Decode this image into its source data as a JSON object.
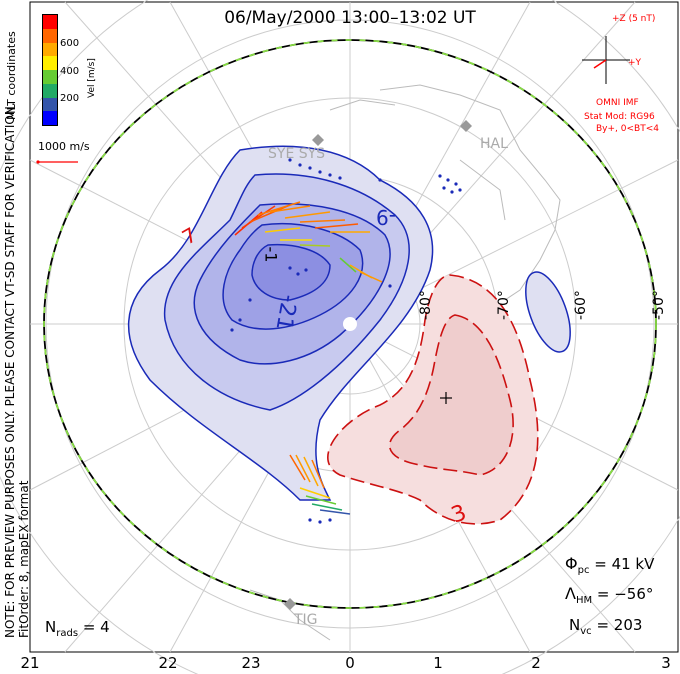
{
  "title": "06/May/2000 13:00–13:02 UT",
  "side_note": "NOTE: FOR PREVIEW PURPOSES ONLY. PLEASE CONTACT VT-SD STAFF FOR VERIFICATION.",
  "coords": "MLT coordinates",
  "fit_order": "FitOrder: 8, mapEX format",
  "colorbar": {
    "label": "Vel [m/s]",
    "ticks": [
      "600",
      "400",
      "200"
    ],
    "colors": [
      "#ff0000",
      "#ff6600",
      "#ffaa00",
      "#ffee00",
      "#66cc33",
      "#22aa66",
      "#3355aa",
      "#0000ff"
    ]
  },
  "scale_vector": "1000 m/s",
  "imf": {
    "z": "+Z (5 nT)",
    "y": "+Y",
    "source": "OMNI IMF",
    "model": "Stat Mod: RG96",
    "cond": "By+, 0<BT<4"
  },
  "stations": {
    "top": "SYE SYS",
    "right": "HAL",
    "bottom": "TIG"
  },
  "latitudes": [
    "-80°",
    "-70°",
    "-60°",
    "-50°"
  ],
  "contours": {
    "neg_a": "-9",
    "neg_b": "-21",
    "neg_c": "-1",
    "pos_a": "7",
    "pos_b": "3"
  },
  "stats": {
    "phi_pc": "= 41 kV",
    "lambda_hm": "= −56°",
    "n_vc": "= 203",
    "n_rads": "= 4"
  },
  "mlt_ticks": [
    "21",
    "22",
    "23",
    "0",
    "1",
    "2",
    "3"
  ]
}
